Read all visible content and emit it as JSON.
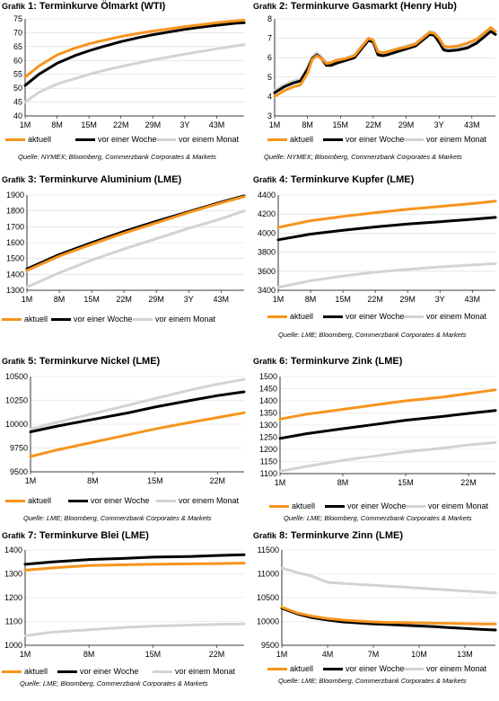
{
  "colors": {
    "aktuell": "#f7941d",
    "woche": "#000000",
    "monat": "#d3d3d3",
    "grid": "#d9d9d9"
  },
  "legend_labels": {
    "aktuell": "aktuell",
    "woche": "vor einer Woche",
    "monat": "vor einem Monat"
  },
  "charts": [
    {
      "label": "Grafik",
      "number": "1:",
      "title": "Terminkurve Ölmarkt (WTI)",
      "source": "Quelle: NYMEX; Bloomberg, Commerzbank Corporates & Markets",
      "chart_data": {
        "type": "line",
        "x": [
          1,
          4,
          8,
          12,
          15,
          18,
          22,
          26,
          29,
          33,
          36,
          40,
          43,
          47,
          49
        ],
        "xticks": [
          {
            "x": 1,
            "label": "1M"
          },
          {
            "x": 8,
            "label": "8M"
          },
          {
            "x": 15,
            "label": "15M"
          },
          {
            "x": 22,
            "label": "22M"
          },
          {
            "x": 29,
            "label": "29M"
          },
          {
            "x": 36,
            "label": "3Y"
          },
          {
            "x": 43,
            "label": "43M"
          }
        ],
        "xlim": [
          1,
          49
        ],
        "ylim": [
          40,
          75
        ],
        "yticks": [
          40,
          45,
          50,
          55,
          60,
          65,
          70,
          75
        ],
        "series": [
          {
            "name": "aktuell",
            "key": "aktuell",
            "values": [
              54,
              58,
              62,
              64.5,
              66,
              67.2,
              68.6,
              69.8,
              70.6,
              71.5,
              72.2,
              73,
              73.6,
              74.3,
              74.5
            ]
          },
          {
            "name": "vor einer Woche",
            "key": "woche",
            "values": [
              51,
              55,
              59,
              61.8,
              63.5,
              65,
              66.8,
              68.3,
              69.3,
              70.4,
              71.2,
              72.1,
              72.7,
              73.4,
              73.6
            ]
          },
          {
            "name": "vor einem Monat",
            "key": "monat",
            "values": [
              45,
              48.5,
              51.5,
              53.5,
              55,
              56.3,
              57.8,
              59.2,
              60.2,
              61.4,
              62.3,
              63.4,
              64.2,
              65.2,
              65.7
            ]
          }
        ]
      }
    },
    {
      "label": "Grafik",
      "number": "2:",
      "title": "Terminkurve Gasmarkt (Henry Hub)",
      "source": "Quelle: NYMEX; Bloomberg, Commerzbank Corporates & Markets",
      "chart_data": {
        "type": "line",
        "x": [
          1,
          3,
          5,
          6.5,
          8,
          9,
          10,
          11,
          12,
          13,
          14,
          16,
          18,
          20,
          21,
          22,
          23,
          24,
          25,
          27,
          29,
          31,
          33,
          34,
          35,
          36,
          37,
          38,
          40,
          42,
          44,
          46,
          47,
          48
        ],
        "xticks": [
          {
            "x": 1,
            "label": "1M"
          },
          {
            "x": 8,
            "label": "8M"
          },
          {
            "x": 15,
            "label": "15M"
          },
          {
            "x": 22,
            "label": "22M"
          },
          {
            "x": 29,
            "label": "29M"
          },
          {
            "x": 36,
            "label": "3Y"
          },
          {
            "x": 43,
            "label": "43M"
          }
        ],
        "xlim": [
          1,
          48
        ],
        "ylim": [
          3,
          8
        ],
        "yticks": [
          3.0,
          4.0,
          5.0,
          6.0,
          7.0,
          8.0
        ],
        "series": [
          {
            "name": "aktuell",
            "key": "aktuell",
            "values": [
              4.0,
              4.3,
              4.5,
              4.6,
              5.2,
              5.9,
              6.1,
              5.95,
              5.7,
              5.75,
              5.85,
              5.95,
              6.1,
              6.7,
              7.0,
              6.9,
              6.3,
              6.25,
              6.3,
              6.45,
              6.55,
              6.7,
              7.1,
              7.3,
              7.25,
              7.0,
              6.6,
              6.55,
              6.6,
              6.75,
              6.95,
              7.35,
              7.55,
              7.35
            ]
          },
          {
            "name": "vor einer Woche",
            "key": "woche",
            "values": [
              4.2,
              4.5,
              4.7,
              4.8,
              5.4,
              5.95,
              6.15,
              5.95,
              5.6,
              5.6,
              5.7,
              5.85,
              6.0,
              6.6,
              6.9,
              6.8,
              6.15,
              6.1,
              6.15,
              6.3,
              6.45,
              6.6,
              7.0,
              7.2,
              7.15,
              6.8,
              6.4,
              6.35,
              6.4,
              6.5,
              6.75,
              7.15,
              7.35,
              7.2
            ]
          },
          {
            "name": "vor einem Monat",
            "key": "monat",
            "values": [
              4.3,
              4.6,
              4.8,
              4.9,
              5.5,
              6.05,
              6.25,
              6.05,
              5.75,
              5.75,
              5.85,
              5.95,
              6.15,
              6.75,
              7.0,
              6.9,
              6.3,
              6.25,
              6.3,
              6.45,
              6.6,
              6.75,
              7.15,
              7.35,
              7.3,
              6.95,
              6.5,
              6.45,
              6.5,
              6.65,
              6.9,
              7.3,
              7.5,
              7.35
            ]
          }
        ]
      }
    },
    {
      "label": "Grafik",
      "number": "3:",
      "title": "Terminkurve Aluminium (LME)",
      "source": "",
      "chart_data": {
        "type": "line",
        "x": [
          1,
          8,
          15,
          22,
          29,
          36,
          43,
          48
        ],
        "xticks": [
          {
            "x": 1,
            "label": "1M"
          },
          {
            "x": 8,
            "label": "8M"
          },
          {
            "x": 15,
            "label": "15M"
          },
          {
            "x": 22,
            "label": "22M"
          },
          {
            "x": 29,
            "label": "29M"
          },
          {
            "x": 36,
            "label": "3Y"
          },
          {
            "x": 43,
            "label": "43M"
          }
        ],
        "xlim": [
          1,
          48
        ],
        "ylim": [
          1300,
          1900
        ],
        "yticks": [
          1300,
          1400,
          1500,
          1600,
          1700,
          1800,
          1900
        ],
        "series": [
          {
            "name": "aktuell",
            "key": "aktuell",
            "values": [
              1425,
              1515,
              1590,
              1660,
              1725,
              1790,
              1850,
              1890
            ]
          },
          {
            "name": "vor einer Woche",
            "key": "woche",
            "values": [
              1435,
              1525,
              1600,
              1670,
              1735,
              1795,
              1855,
              1895
            ]
          },
          {
            "name": "vor einem Monat",
            "key": "monat",
            "values": [
              1320,
              1410,
              1490,
              1560,
              1625,
              1690,
              1750,
              1800
            ]
          }
        ]
      }
    },
    {
      "label": "Grafik",
      "number": "4:",
      "title": "Terminkurve Kupfer (LME)",
      "source": "Quelle: LME; Bloomberg, Commerzbank Corporates & Markets",
      "chart_data": {
        "type": "line",
        "x": [
          1,
          8,
          15,
          22,
          29,
          36,
          43,
          48
        ],
        "xticks": [
          {
            "x": 1,
            "label": "1M"
          },
          {
            "x": 8,
            "label": "8M"
          },
          {
            "x": 15,
            "label": "15M"
          },
          {
            "x": 22,
            "label": "22M"
          },
          {
            "x": 29,
            "label": "29M"
          },
          {
            "x": 36,
            "label": "3Y"
          },
          {
            "x": 43,
            "label": "43M"
          }
        ],
        "xlim": [
          1,
          48
        ],
        "ylim": [
          3400,
          4400
        ],
        "yticks": [
          3400,
          3600,
          3800,
          4000,
          4200,
          4400
        ],
        "series": [
          {
            "name": "aktuell",
            "key": "aktuell",
            "values": [
              4060,
              4130,
              4175,
              4215,
              4250,
              4280,
              4310,
              4335
            ]
          },
          {
            "name": "vor einer Woche",
            "key": "woche",
            "values": [
              3930,
              3990,
              4030,
              4065,
              4095,
              4120,
              4145,
              4165
            ]
          },
          {
            "name": "vor einem Monat",
            "key": "monat",
            "values": [
              3430,
              3500,
              3550,
              3590,
              3620,
              3645,
              3665,
              3680
            ]
          }
        ]
      }
    },
    {
      "label": "Grafik",
      "number": "5:",
      "title": "Terminkurve Nickel (LME)",
      "source": "Quelle: LME; Bloomberg, Commerzbank Corporates & Markets",
      "chart_data": {
        "type": "line",
        "x": [
          1,
          4,
          8,
          12,
          15,
          19,
          22,
          25
        ],
        "xticks": [
          {
            "x": 1,
            "label": "1M"
          },
          {
            "x": 8,
            "label": "8M"
          },
          {
            "x": 15,
            "label": "15M"
          },
          {
            "x": 22,
            "label": "22M"
          }
        ],
        "xlim": [
          1,
          25
        ],
        "ylim": [
          9500,
          10500
        ],
        "yticks": [
          9500,
          9750,
          10000,
          10250,
          10500
        ],
        "series": [
          {
            "name": "aktuell",
            "key": "aktuell",
            "values": [
              9660,
              9730,
              9810,
              9890,
              9950,
              10020,
              10070,
              10120
            ]
          },
          {
            "name": "vor einer Woche",
            "key": "woche",
            "values": [
              9920,
              9980,
              10050,
              10120,
              10180,
              10250,
              10300,
              10340
            ]
          },
          {
            "name": "vor einem Monat",
            "key": "monat",
            "values": [
              9950,
              10020,
              10110,
              10200,
              10270,
              10360,
              10420,
              10470
            ]
          }
        ]
      }
    },
    {
      "label": "Grafik",
      "number": "6:",
      "title": "Terminkurve Zink (LME)",
      "source": "Quelle: LME; Bloomberg, Commerzbank Corporates & Markets",
      "chart_data": {
        "type": "line",
        "x": [
          1,
          4,
          8,
          12,
          15,
          19,
          22,
          25
        ],
        "xticks": [
          {
            "x": 1,
            "label": "1M"
          },
          {
            "x": 8,
            "label": "8M"
          },
          {
            "x": 15,
            "label": "15M"
          },
          {
            "x": 22,
            "label": "22M"
          }
        ],
        "xlim": [
          1,
          25
        ],
        "ylim": [
          1100,
          1500
        ],
        "yticks": [
          1100,
          1150,
          1200,
          1250,
          1300,
          1350,
          1400,
          1450,
          1500
        ],
        "series": [
          {
            "name": "aktuell",
            "key": "aktuell",
            "values": [
              1325,
              1345,
              1365,
              1385,
              1400,
              1415,
              1430,
              1445
            ]
          },
          {
            "name": "vor einer Woche",
            "key": "woche",
            "values": [
              1245,
              1265,
              1285,
              1305,
              1320,
              1335,
              1348,
              1360
            ]
          },
          {
            "name": "vor einem Monat",
            "key": "monat",
            "values": [
              1110,
              1130,
              1155,
              1175,
              1190,
              1205,
              1218,
              1228
            ]
          }
        ]
      }
    },
    {
      "label": "Grafik",
      "number": "7:",
      "title": "Terminkurve Blei (LME)",
      "source": "Quelle: LME; Bloomberg, Commerzbank Corporates & Markets",
      "chart_data": {
        "type": "line",
        "x": [
          1,
          4,
          8,
          12,
          15,
          19,
          22,
          25
        ],
        "xticks": [
          {
            "x": 1,
            "label": "1M"
          },
          {
            "x": 8,
            "label": "8M"
          },
          {
            "x": 15,
            "label": "15M"
          },
          {
            "x": 22,
            "label": "22M"
          }
        ],
        "xlim": [
          1,
          25
        ],
        "ylim": [
          1000,
          1400
        ],
        "yticks": [
          1000,
          1100,
          1200,
          1300,
          1400
        ],
        "series": [
          {
            "name": "aktuell",
            "key": "aktuell",
            "values": [
              1315,
              1325,
              1335,
              1338,
              1340,
              1342,
              1343,
              1345
            ]
          },
          {
            "name": "vor einer Woche",
            "key": "woche",
            "values": [
              1340,
              1350,
              1360,
              1365,
              1370,
              1373,
              1377,
              1380
            ]
          },
          {
            "name": "vor einem Monat",
            "key": "monat",
            "values": [
              1040,
              1055,
              1065,
              1075,
              1080,
              1085,
              1088,
              1090
            ]
          }
        ]
      }
    },
    {
      "label": "Grafik",
      "number": "8:",
      "title": "Terminkurve Zinn (LME)",
      "source": "Quelle: LME; Bloomberg, Commerzbank Corporates & Markets",
      "chart_data": {
        "type": "line",
        "x": [
          1,
          2,
          3,
          4,
          5,
          6,
          7,
          8,
          9,
          10,
          11,
          12,
          13,
          14,
          15
        ],
        "xticks": [
          {
            "x": 1,
            "label": "1M"
          },
          {
            "x": 4,
            "label": "4M"
          },
          {
            "x": 7,
            "label": "7M"
          },
          {
            "x": 10,
            "label": "10M"
          },
          {
            "x": 13,
            "label": "13M"
          }
        ],
        "xlim": [
          1,
          15
        ],
        "ylim": [
          9500,
          11500
        ],
        "yticks": [
          9500,
          10000,
          10500,
          11000,
          11500
        ],
        "series": [
          {
            "name": "aktuell",
            "key": "aktuell",
            "values": [
              10300,
              10180,
              10110,
              10060,
              10030,
              10010,
              9990,
              9980,
              9975,
              9970,
              9965,
              9960,
              9955,
              9950,
              9945
            ]
          },
          {
            "name": "vor einer Woche",
            "key": "woche",
            "values": [
              10280,
              10160,
              10080,
              10030,
              9990,
              9970,
              9950,
              9935,
              9920,
              9905,
              9890,
              9870,
              9855,
              9835,
              9820
            ]
          },
          {
            "name": "vor einem Monat",
            "key": "monat",
            "values": [
              11120,
              11030,
              10950,
              10820,
              10800,
              10780,
              10760,
              10740,
              10720,
              10700,
              10680,
              10660,
              10640,
              10620,
              10600
            ]
          }
        ]
      }
    }
  ]
}
